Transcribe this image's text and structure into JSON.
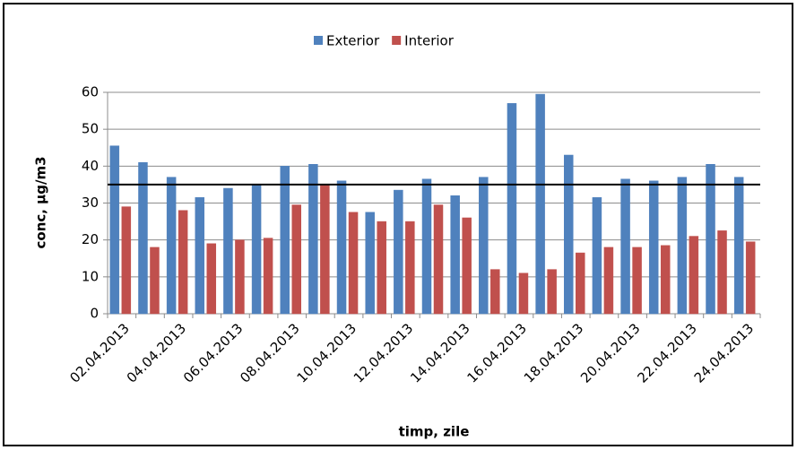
{
  "chart_data": {
    "type": "bar",
    "categories": [
      "02.04.2013",
      null,
      "04.04.2013",
      null,
      "06.04.2013",
      null,
      "08.04.2013",
      null,
      "10.04.2013",
      null,
      "12.04.2013",
      null,
      "14.04.2013",
      null,
      "16.04.2013",
      null,
      "18.04.2013",
      null,
      "20.04.2013",
      null,
      "22.04.2013",
      null,
      "24.04.2013"
    ],
    "series": [
      {
        "name": "Exterior",
        "color": "#4f81bd",
        "values": [
          45.5,
          41,
          37,
          31.5,
          34,
          35,
          40,
          40.5,
          36,
          27.5,
          33.5,
          36.5,
          32,
          37,
          57,
          59.5,
          43,
          31.5,
          36.5,
          36,
          37,
          40.5,
          37
        ]
      },
      {
        "name": "Interior",
        "color": "#c0504d",
        "values": [
          29,
          18,
          28,
          19,
          20,
          20.5,
          29.5,
          35,
          27.5,
          25,
          25,
          29.5,
          26,
          12,
          11,
          12,
          16.5,
          18,
          18,
          18.5,
          21,
          22.5,
          19.5
        ]
      }
    ],
    "hline": 35,
    "ylim": [
      0,
      60
    ],
    "yticks": [
      0,
      10,
      20,
      30,
      40,
      50,
      60
    ],
    "grid": true,
    "xlabel": "timp, zile",
    "ylabel": "conc, µg/m3",
    "legend": "top"
  }
}
